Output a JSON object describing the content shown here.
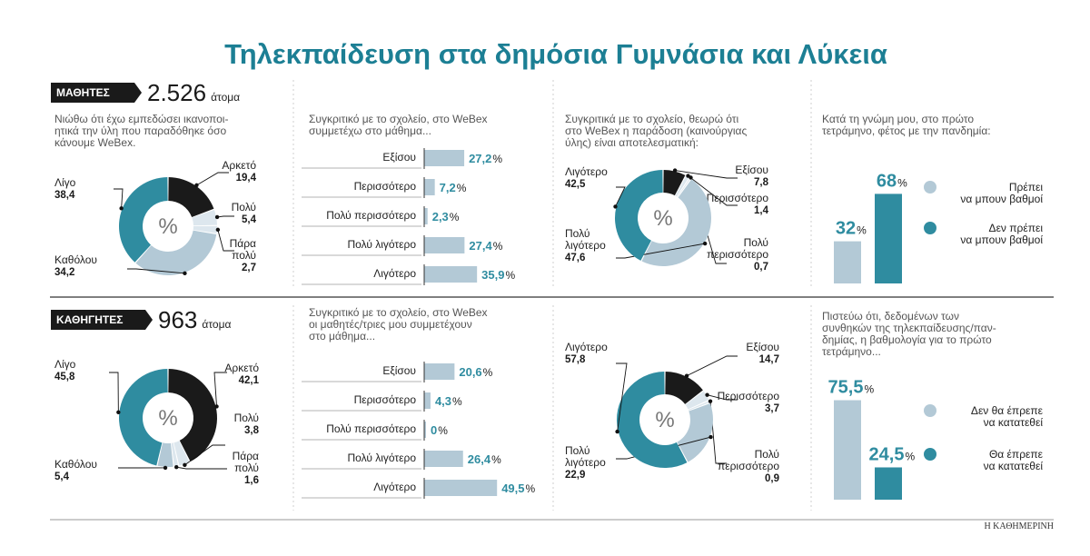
{
  "title": "Τηλεκπαίδευση στα δημόσια Γυμνάσια και Λύκεια",
  "credit": "Η ΚΑΘΗΜΕΡΙΝΗ",
  "colors": {
    "dark": "#1a1a1a",
    "teal": "#2f8ca0",
    "light": "#b3c9d6",
    "vlight": "#dde7ee",
    "title": "#1c7f94"
  },
  "groups": [
    {
      "tag": "ΜΑΘΗΤΕΣ",
      "count": "2.526",
      "unit": "άτομα"
    },
    {
      "tag": "ΚΑΘΗΓΗΤΕΣ",
      "count": "963",
      "unit": "άτομα"
    }
  ],
  "chart_data": [
    {
      "type": "pie",
      "question": [
        "Νιώθω ότι έχω εμπεδώσει ικανοποι-",
        "ητικά την ύλη που παραδόθηκε όσο",
        "κάνουμε WeBex."
      ],
      "center_label": "%",
      "slices": [
        {
          "label": [
            "Αρκετό"
          ],
          "value": 19.4,
          "display": "19,4",
          "color": "dark"
        },
        {
          "label": [
            "Πολύ"
          ],
          "value": 5.4,
          "display": "5,4",
          "color": "vlight"
        },
        {
          "label": [
            "Πάρα",
            "πολύ"
          ],
          "value": 2.7,
          "display": "2,7",
          "color": "vlight"
        },
        {
          "label": [
            "Καθόλου"
          ],
          "value": 34.2,
          "display": "34,2",
          "color": "light"
        },
        {
          "label": [
            "Λίγο"
          ],
          "value": 38.4,
          "display": "38,4",
          "color": "teal"
        }
      ]
    },
    {
      "type": "bar",
      "question": [
        "Συγκριτικό με το σχολείο, στο WeBex",
        "συμμετέχω στο μάθημα..."
      ],
      "categories": [
        "Εξίσου",
        "Περισσότερο",
        "Πολύ περισσότερο",
        "Πολύ λιγότερο",
        "Λιγότερο"
      ],
      "values": [
        27.2,
        7.2,
        2.3,
        27.4,
        35.9
      ],
      "display": [
        "27,2",
        "7,2",
        "2,3",
        "27,4",
        "35,9"
      ],
      "unit": "%"
    },
    {
      "type": "pie",
      "question": [
        "Συγκριτικά με το σχολείο, θεωρώ ότι",
        "στο WeBex η παράδοση (καινούργιας",
        "ύλης) είναι αποτελεσματική:"
      ],
      "center_label": "%",
      "slices": [
        {
          "label": [
            "Εξίσου"
          ],
          "value": 7.8,
          "display": "7,8",
          "color": "dark"
        },
        {
          "label": [
            "Περισσότερο"
          ],
          "value": 1.4,
          "display": "1,4",
          "color": "vlight"
        },
        {
          "label": [
            "Πολύ",
            "περισσότερο"
          ],
          "value": 0.7,
          "display": "0,7",
          "color": "vlight"
        },
        {
          "label": [
            "Πολύ",
            "λιγότερο"
          ],
          "value": 47.6,
          "display": "47,6",
          "color": "light"
        },
        {
          "label": [
            "Λιγότερο"
          ],
          "value": 42.5,
          "display": "42,5",
          "color": "teal"
        }
      ]
    },
    {
      "type": "bar",
      "question": [
        "Κατά τη γνώμη μου, στο πρώτο",
        "τετράμηνο, φέτος με την πανδημία:"
      ],
      "categories": [
        [
          "Πρέπει",
          "να μπουν βαθμοί"
        ],
        [
          "Δεν πρέπει",
          "να μπουν βαθμοί"
        ]
      ],
      "values": [
        32,
        68
      ],
      "display": [
        "32",
        "68"
      ],
      "unit": "%",
      "colors": [
        "light",
        "teal"
      ]
    },
    {
      "type": "pie",
      "question": [],
      "center_label": "%",
      "slices": [
        {
          "label": [
            "Αρκετό"
          ],
          "value": 42.1,
          "display": "42,1",
          "color": "dark"
        },
        {
          "label": [
            "Πολύ"
          ],
          "value": 3.8,
          "display": "3,8",
          "color": "vlight"
        },
        {
          "label": [
            "Πάρα",
            "πολύ"
          ],
          "value": 1.6,
          "display": "1,6",
          "color": "vlight"
        },
        {
          "label": [
            "Καθόλου"
          ],
          "value": 5.4,
          "display": "5,4",
          "color": "light"
        },
        {
          "label": [
            "Λίγο"
          ],
          "value": 45.8,
          "display": "45,8",
          "color": "teal"
        }
      ]
    },
    {
      "type": "bar",
      "question": [
        "Συγκριτικό με το σχολείο, στο WeBex",
        "οι μαθητές/τριες μου συμμετέχουν",
        "στο μάθημα..."
      ],
      "categories": [
        "Εξίσου",
        "Περισσότερο",
        "Πολύ περισσότερο",
        "Πολύ λιγότερο",
        "Λιγότερο"
      ],
      "values": [
        20.6,
        4.3,
        0,
        26.4,
        49.5
      ],
      "display": [
        "20,6",
        "4,3",
        "0",
        "26,4",
        "49,5"
      ],
      "unit": "%"
    },
    {
      "type": "pie",
      "question": [],
      "center_label": "%",
      "slices": [
        {
          "label": [
            "Εξίσου"
          ],
          "value": 14.7,
          "display": "14,7",
          "color": "dark"
        },
        {
          "label": [
            "Περισσότερο"
          ],
          "value": 3.7,
          "display": "3,7",
          "color": "vlight"
        },
        {
          "label": [
            "Πολύ",
            "περισσότερο"
          ],
          "value": 0.9,
          "display": "0,9",
          "color": "vlight"
        },
        {
          "label": [
            "Πολύ",
            "λιγότερο"
          ],
          "value": 22.9,
          "display": "22,9",
          "color": "light"
        },
        {
          "label": [
            "Λιγότερο"
          ],
          "value": 57.8,
          "display": "57,8",
          "color": "teal"
        }
      ]
    },
    {
      "type": "bar",
      "question": [
        "Πιστεύω ότι, δεδομένων των",
        "συνθηκών της τηλεκπαίδευσης/παν-",
        "δημίας, η βαθμολογία για το πρώτο",
        "τετράμηνο..."
      ],
      "categories": [
        [
          "Δεν θα έπρεπε",
          "να κατατεθεί"
        ],
        [
          "Θα έπρεπε",
          "να κατατεθεί"
        ]
      ],
      "values": [
        75.5,
        24.5
      ],
      "display": [
        "75,5",
        "24,5"
      ],
      "unit": "%",
      "colors": [
        "light",
        "teal"
      ]
    }
  ]
}
